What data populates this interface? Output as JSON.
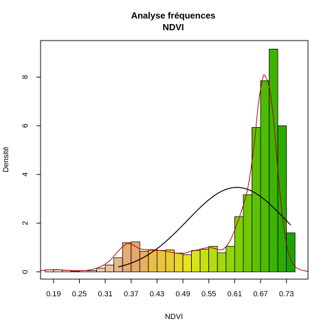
{
  "chart_data": {
    "type": "histogram",
    "title": "Analyse fréquences",
    "subtitle": "NDVI",
    "xlabel": "NDVI",
    "ylabel": "Densité",
    "xlim": [
      0.16,
      0.78
    ],
    "ylim": [
      -0.3,
      9.5
    ],
    "x_ticks": [
      0.19,
      0.25,
      0.31,
      0.37,
      0.43,
      0.49,
      0.55,
      0.61,
      0.67,
      0.73
    ],
    "x_tick_labels": [
      "0.19",
      "0.25",
      "0.31",
      "0.37",
      "0.43",
      "0.49",
      "0.55",
      "0.61",
      "0.67",
      "0.73"
    ],
    "y_ticks": [
      0,
      2,
      4,
      6,
      8
    ],
    "y_tick_labels": [
      "0",
      "2",
      "4",
      "6",
      "8"
    ],
    "bin_width": 0.02,
    "bin_starts": [
      0.17,
      0.19,
      0.21,
      0.23,
      0.25,
      0.27,
      0.29,
      0.31,
      0.33,
      0.35,
      0.37,
      0.39,
      0.41,
      0.43,
      0.45,
      0.47,
      0.49,
      0.51,
      0.53,
      0.55,
      0.57,
      0.59,
      0.61,
      0.63,
      0.65,
      0.67,
      0.69,
      0.71,
      0.73
    ],
    "densities": [
      0.08,
      0.08,
      0.06,
      0.03,
      0.05,
      0.05,
      0.15,
      0.28,
      0.58,
      1.2,
      1.23,
      0.85,
      0.91,
      0.88,
      0.9,
      0.77,
      0.7,
      0.88,
      0.93,
      1.05,
      0.78,
      1.05,
      2.27,
      3.17,
      5.93,
      7.85,
      9.15,
      6.0,
      1.6
    ],
    "bar_colors": [
      "#f0ece8",
      "#f0ece8",
      "#efe8e0",
      "#eee4dc",
      "#eddfd4",
      "#ecd9c8",
      "#ebcfb6",
      "#e9c3a0",
      "#e8b888",
      "#e6ab74",
      "#e6a86c",
      "#e9b25a",
      "#e9bc4c",
      "#e8c440",
      "#e8cc36",
      "#e8d62c",
      "#e8e020",
      "#d8e21a",
      "#c6e014",
      "#b4dc10",
      "#a4d80c",
      "#92d408",
      "#80ce06",
      "#6ec804",
      "#5ec202",
      "#4ebc02",
      "#3eb402",
      "#2cac02",
      "#1aa402"
    ],
    "normal_curve": {
      "color": "#000000",
      "mean": 0.615,
      "sd": 0.115,
      "x_range": [
        0.34,
        0.74
      ]
    },
    "kde_curve": {
      "color": "#b00000",
      "points": [
        [
          0.16,
          0.05
        ],
        [
          0.18,
          0.08
        ],
        [
          0.2,
          0.09
        ],
        [
          0.22,
          0.06
        ],
        [
          0.24,
          0.05
        ],
        [
          0.26,
          0.05
        ],
        [
          0.28,
          0.1
        ],
        [
          0.3,
          0.22
        ],
        [
          0.32,
          0.45
        ],
        [
          0.34,
          0.85
        ],
        [
          0.355,
          1.1
        ],
        [
          0.365,
          1.16
        ],
        [
          0.38,
          1.05
        ],
        [
          0.39,
          0.95
        ],
        [
          0.41,
          0.9
        ],
        [
          0.43,
          0.88
        ],
        [
          0.45,
          0.85
        ],
        [
          0.47,
          0.78
        ],
        [
          0.49,
          0.75
        ],
        [
          0.51,
          0.85
        ],
        [
          0.53,
          0.93
        ],
        [
          0.55,
          1.0
        ],
        [
          0.565,
          0.95
        ],
        [
          0.575,
          0.9
        ],
        [
          0.585,
          0.95
        ],
        [
          0.6,
          1.3
        ],
        [
          0.62,
          2.2
        ],
        [
          0.64,
          3.4
        ],
        [
          0.655,
          5.2
        ],
        [
          0.665,
          6.9
        ],
        [
          0.675,
          7.95
        ],
        [
          0.68,
          8.05
        ],
        [
          0.69,
          7.6
        ],
        [
          0.7,
          6.3
        ],
        [
          0.71,
          4.2
        ],
        [
          0.72,
          2.4
        ],
        [
          0.73,
          1.15
        ],
        [
          0.74,
          0.5
        ],
        [
          0.75,
          0.22
        ],
        [
          0.76,
          0.1
        ],
        [
          0.77,
          0.05
        ],
        [
          0.78,
          0.02
        ]
      ]
    }
  }
}
